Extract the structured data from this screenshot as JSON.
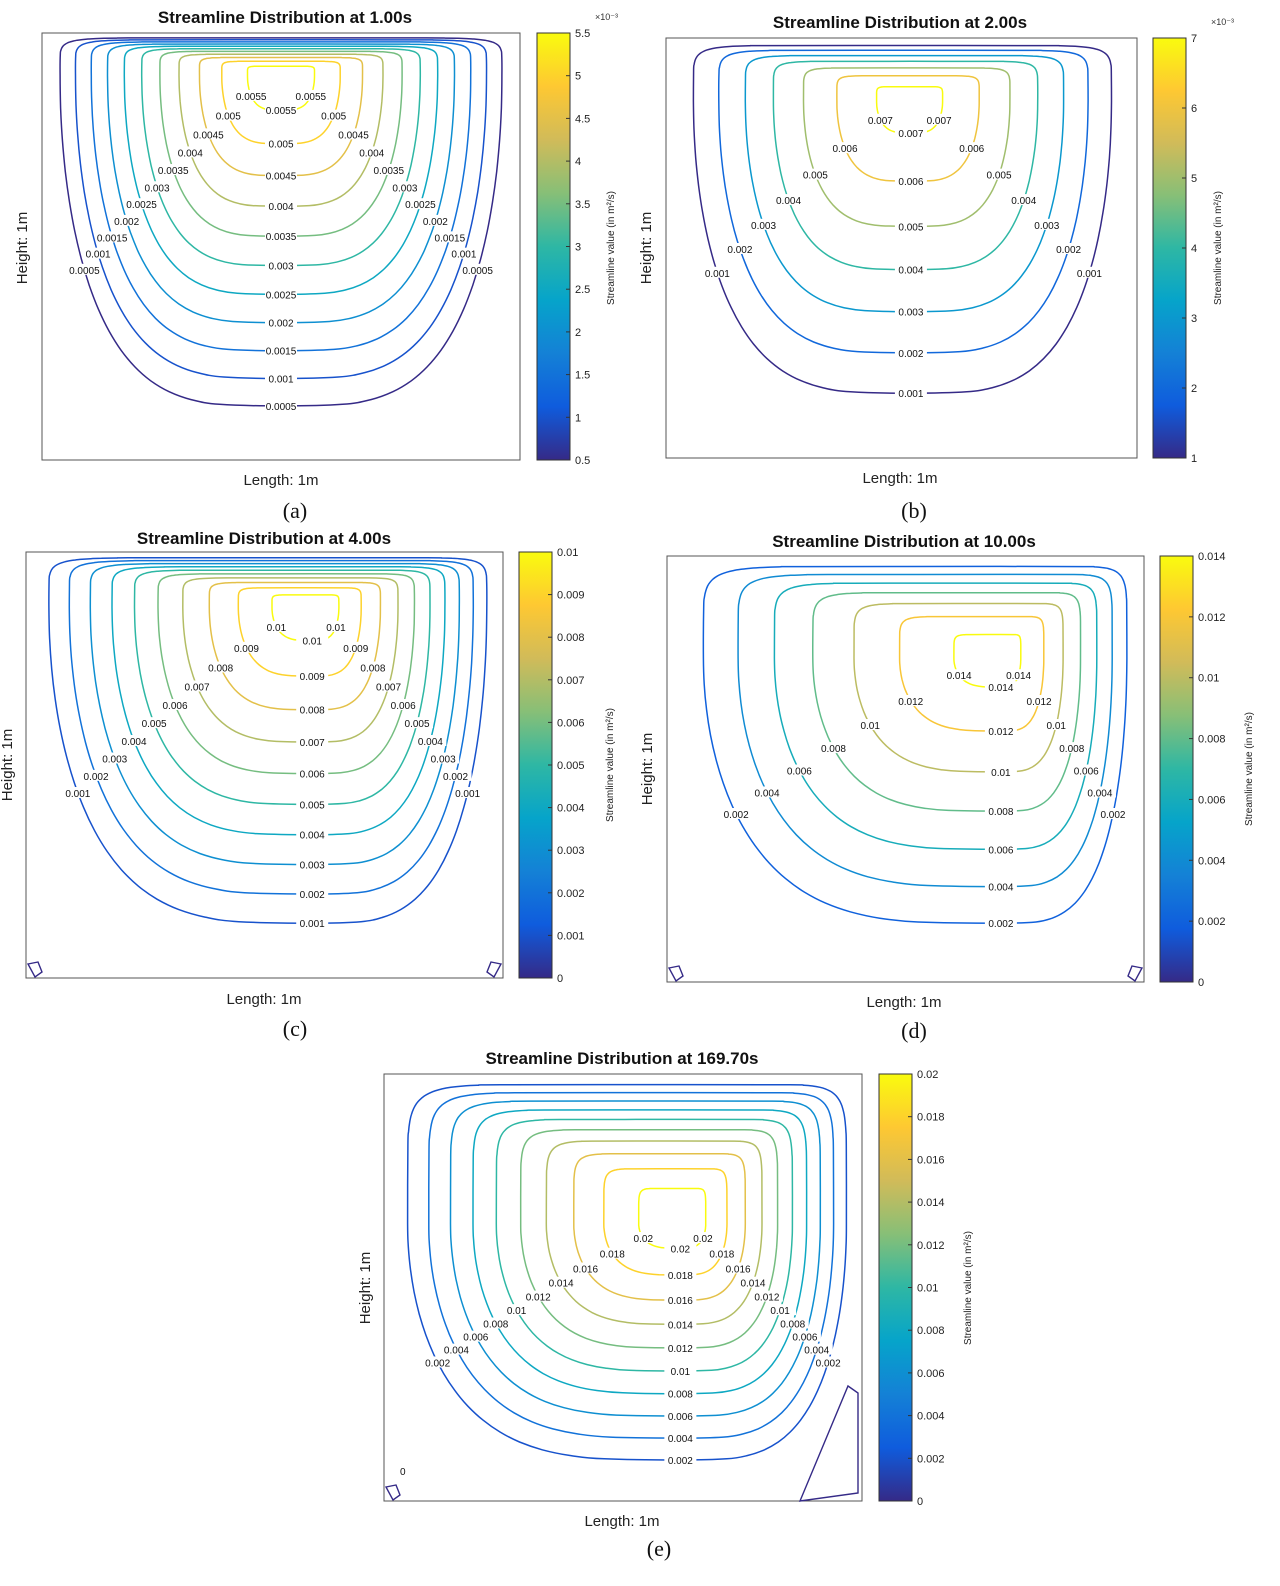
{
  "colormap": [
    "#352a87",
    "#0f5cdd",
    "#1481d6",
    "#06a4ca",
    "#2eb7a4",
    "#87bf77",
    "#d1bb59",
    "#fec832",
    "#f9fb0e"
  ],
  "chart_data": [
    {
      "type": "contour",
      "panel_label": "(a)",
      "title": "Streamline Distribution at 1.00s",
      "xlabel": "Length: 1m",
      "ylabel": "Height: 1m",
      "colorbar": {
        "label": "Streamline value (in m²/s)",
        "exponent": "×10⁻³",
        "min": 0.5,
        "max": 5.5,
        "ticks": [
          "0.5",
          "1",
          "1.5",
          "2",
          "2.5",
          "3",
          "3.5",
          "4",
          "4.5",
          "5",
          "5.5"
        ]
      },
      "levels": [
        0.0005,
        0.001,
        0.0015,
        0.002,
        0.0025,
        0.003,
        0.0035,
        0.004,
        0.0045,
        0.005,
        0.0055
      ],
      "level_labels": [
        "0.0005",
        "0.001",
        "0.0015",
        "0.002",
        "0.0025",
        "0.003",
        "0.0035",
        "0.004",
        "0.0045",
        "0.005",
        "0.0055"
      ],
      "vortex_center": [
        0.5,
        0.9
      ],
      "corner_eddies": false
    },
    {
      "type": "contour",
      "panel_label": "(b)",
      "title": "Streamline Distribution at 2.00s",
      "xlabel": "Length: 1m",
      "ylabel": "Height: 1m",
      "colorbar": {
        "label": "Streamline value (in m²/s)",
        "exponent": "×10⁻³",
        "min": 1,
        "max": 7,
        "ticks": [
          "1",
          "2",
          "3",
          "4",
          "5",
          "6",
          "7"
        ]
      },
      "levels": [
        0.001,
        0.002,
        0.003,
        0.004,
        0.005,
        0.006,
        0.007
      ],
      "level_labels": [
        "0.001",
        "0.002",
        "0.003",
        "0.004",
        "0.005",
        "0.006",
        "0.007"
      ],
      "vortex_center": [
        0.52,
        0.85
      ],
      "corner_eddies": false
    },
    {
      "type": "contour",
      "panel_label": "(c)",
      "title": "Streamline Distribution at 4.00s",
      "xlabel": "Length: 1m",
      "ylabel": "Height: 1m",
      "colorbar": {
        "label": "Streamline value (in m²/s)",
        "exponent": "",
        "min": 0,
        "max": 0.01,
        "ticks": [
          "0",
          "0.001",
          "0.002",
          "0.003",
          "0.004",
          "0.005",
          "0.006",
          "0.007",
          "0.008",
          "0.009",
          "0.01"
        ]
      },
      "levels": [
        0.001,
        0.002,
        0.003,
        0.004,
        0.005,
        0.006,
        0.007,
        0.008,
        0.009,
        0.01
      ],
      "level_labels": [
        "0.001",
        "0.002",
        "0.003",
        "0.004",
        "0.005",
        "0.006",
        "0.007",
        "0.008",
        "0.009",
        "0.01"
      ],
      "vortex_center": [
        0.6,
        0.87
      ],
      "corner_eddies": true
    },
    {
      "type": "contour",
      "panel_label": "(d)",
      "title": "Streamline Distribution at 10.00s",
      "xlabel": "Length: 1m",
      "ylabel": "Height: 1m",
      "colorbar": {
        "label": "Streamline value (in m²/s)",
        "exponent": "",
        "min": 0,
        "max": 0.014,
        "ticks": [
          "0",
          "0.002",
          "0.004",
          "0.006",
          "0.008",
          "0.01",
          "0.012",
          "0.014"
        ]
      },
      "levels": [
        0.002,
        0.004,
        0.006,
        0.008,
        0.01,
        0.012,
        0.014
      ],
      "level_labels": [
        "0.002",
        "0.004",
        "0.006",
        "0.008",
        "0.01",
        "0.012",
        "0.014"
      ],
      "vortex_center": [
        0.7,
        0.76
      ],
      "corner_eddies": true
    },
    {
      "type": "contour",
      "panel_label": "(e)",
      "title": "Streamline Distribution at 169.70s",
      "xlabel": "Length: 1m",
      "ylabel": "Height: 1m",
      "colorbar": {
        "label": "Streamline value (in m²/s)",
        "exponent": "",
        "min": 0,
        "max": 0.02,
        "ticks": [
          "0",
          "0.002",
          "0.004",
          "0.006",
          "0.008",
          "0.01",
          "0.012",
          "0.014",
          "0.016",
          "0.018",
          "0.02"
        ]
      },
      "levels": [
        0.002,
        0.004,
        0.006,
        0.008,
        0.01,
        0.012,
        0.014,
        0.016,
        0.018,
        0.02
      ],
      "level_labels": [
        "0.002",
        "0.004",
        "0.006",
        "0.008",
        "0.01",
        "0.012",
        "0.014",
        "0.016",
        "0.018",
        "0.02"
      ],
      "vortex_center": [
        0.62,
        0.65
      ],
      "corner_eddies": true,
      "corner_label": "0"
    }
  ]
}
